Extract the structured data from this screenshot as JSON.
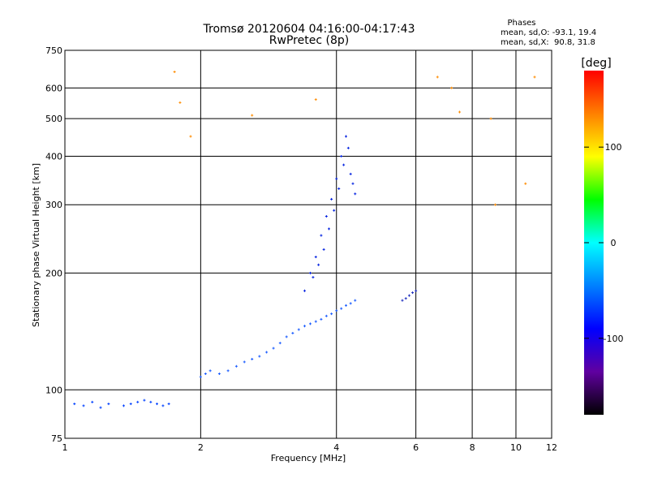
{
  "chart_data": {
    "type": "scatter",
    "title": "Tromsø 20120604 04:16:00-04:17:43",
    "subtitle": "RwPretec (8p)",
    "xlabel": "Frequency [MHz]",
    "ylabel": "Stationary phase Virtual Height [km]",
    "xscale": "log",
    "yscale": "log",
    "xlim": [
      1,
      12
    ],
    "ylim": [
      75,
      750
    ],
    "xticks": [
      1,
      2,
      4,
      6,
      8,
      10,
      12
    ],
    "yticks": [
      75,
      100,
      200,
      300,
      400,
      500,
      600,
      750
    ],
    "grid": true,
    "phases_box": {
      "title": "Phases",
      "line1": "mean, sd,O: -93.1, 19.4",
      "line2": "mean, sd,X:  90.8, 31.8"
    },
    "colorbar": {
      "label": "[deg]",
      "range": [
        -180,
        180
      ],
      "ticks": [
        100,
        0,
        -100
      ],
      "colors": [
        "#ff0000",
        "#ff8000",
        "#ffff00",
        "#00ff00",
        "#00ffff",
        "#0080ff",
        "#0000ff",
        "#6000a0",
        "#000000"
      ]
    },
    "series": [
      {
        "x": [
          1.05,
          1.1,
          1.15,
          1.2,
          1.25,
          1.35,
          1.4,
          1.45,
          1.5,
          1.55,
          1.6,
          1.65,
          1.7
        ],
        "y": [
          92,
          91,
          93,
          90,
          92,
          91,
          92,
          93,
          94,
          93,
          92,
          91,
          92
        ]
      },
      {
        "x": [
          2.0,
          2.05,
          2.1,
          2.2,
          2.3,
          2.4,
          2.5,
          2.6,
          2.7,
          2.8,
          2.9,
          3.0,
          3.1,
          3.2,
          3.3,
          3.4,
          3.5,
          3.6,
          3.7,
          3.8,
          3.9,
          4.0,
          4.1,
          4.2,
          4.3,
          4.4
        ],
        "y": [
          108,
          110,
          112,
          110,
          112,
          115,
          118,
          120,
          122,
          125,
          128,
          132,
          137,
          140,
          143,
          146,
          148,
          150,
          152,
          155,
          157,
          160,
          162,
          165,
          167,
          170
        ]
      },
      {
        "x": [
          3.4,
          3.5,
          3.55,
          3.6,
          3.65,
          3.7,
          3.75,
          3.8,
          3.85,
          3.9,
          3.95,
          4.0,
          4.05,
          4.1,
          4.15,
          4.2,
          4.25,
          4.3,
          4.35,
          4.4
        ],
        "y": [
          180,
          200,
          195,
          220,
          210,
          250,
          230,
          280,
          260,
          310,
          290,
          350,
          330,
          400,
          380,
          450,
          420,
          360,
          340,
          320
        ]
      },
      {
        "x": [
          5.6,
          5.7,
          5.8,
          5.9,
          6.0
        ],
        "y": [
          170,
          172,
          175,
          178,
          180
        ]
      },
      {
        "x": [
          1.75,
          1.8,
          1.9,
          6.7,
          7.2,
          7.5,
          8.8,
          11.0,
          2.6,
          3.6,
          9.0,
          10.5
        ],
        "y": [
          660,
          550,
          450,
          640,
          600,
          520,
          500,
          640,
          510,
          560,
          300,
          340
        ]
      }
    ]
  }
}
